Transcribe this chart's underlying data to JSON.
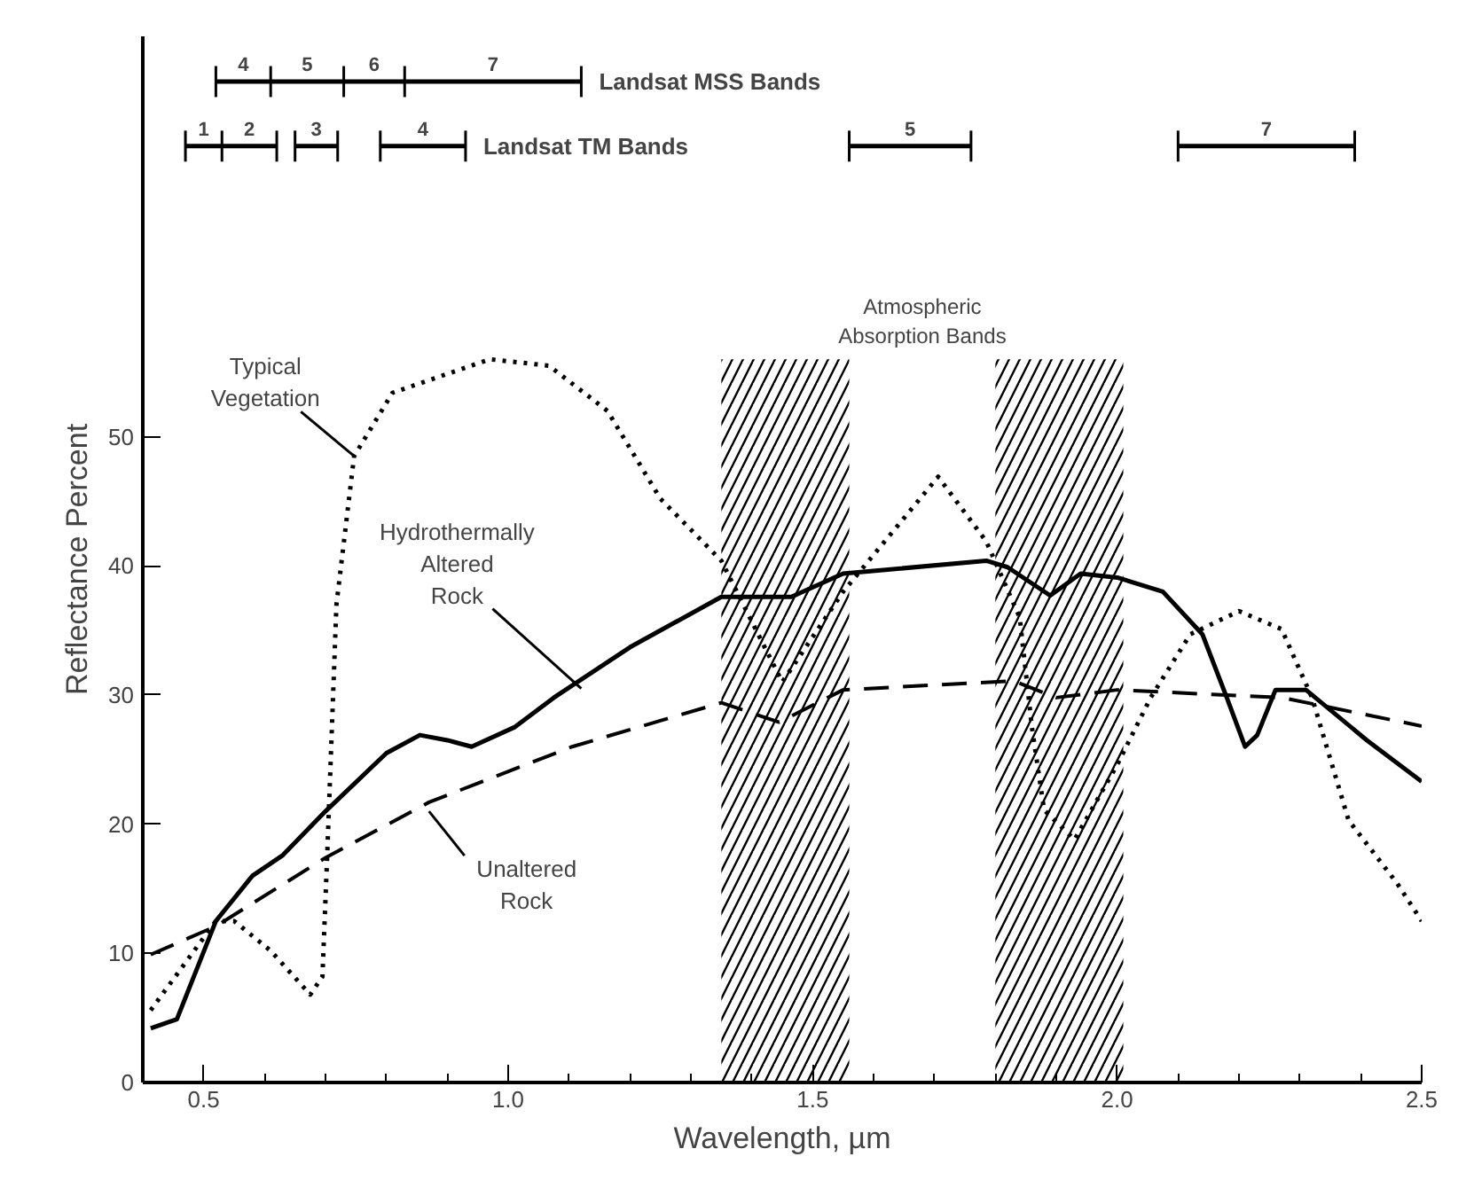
{
  "chart_data": {
    "type": "line",
    "xlabel": "Wavelength, µm",
    "ylabel": "Reflectance Percent",
    "xlim": [
      0.4,
      2.5
    ],
    "ylim": [
      0,
      81
    ],
    "xticks": [
      0.5,
      {
        "value": 0.6,
        "label": null
      },
      {
        "value": 0.7,
        "label": null
      },
      {
        "value": 0.8,
        "label": null
      },
      {
        "value": 0.9,
        "label": null
      },
      {
        "value": 1.0,
        "label": "1.0"
      },
      {
        "value": 1.1,
        "label": null
      },
      {
        "value": 1.2,
        "label": null
      },
      {
        "value": 1.3,
        "label": null
      },
      {
        "value": 1.4,
        "label": null
      },
      1.5,
      {
        "value": 1.6,
        "label": null
      },
      {
        "value": 1.7,
        "label": null
      },
      {
        "value": 1.8,
        "label": null
      },
      {
        "value": 1.9,
        "label": null
      },
      {
        "value": 2.0,
        "label": "2.0"
      },
      {
        "value": 2.1,
        "label": null
      },
      {
        "value": 2.2,
        "label": null
      },
      {
        "value": 2.3,
        "label": null
      },
      {
        "value": 2.4,
        "label": null
      },
      2.5
    ],
    "yticks": [
      0,
      10,
      20,
      30,
      40,
      50
    ],
    "grid": false,
    "bands": [
      {
        "axis": "x",
        "from": 1.35,
        "to": 1.56,
        "color": "#000000"
      },
      {
        "axis": "x",
        "from": 1.8,
        "to": 2.01,
        "color": "#000000"
      }
    ],
    "series": [
      {
        "color": "#000000",
        "line_style": "dotted",
        "x": [
          0.413,
          0.52,
          0.55,
          0.61,
          0.675,
          0.695,
          0.703,
          0.718,
          0.747,
          0.81,
          0.97,
          1.067,
          1.163,
          1.25,
          1.35,
          1.45,
          1.55,
          1.706,
          1.785,
          1.84,
          1.86,
          1.88,
          1.93,
          2.0,
          2.055,
          2.12,
          2.2,
          2.27,
          2.32,
          2.38,
          2.46,
          2.5
        ],
        "values": [
          5.6,
          12.5,
          12.5,
          10.2,
          6.8,
          8.2,
          17.8,
          37,
          48.5,
          53.4,
          56,
          55.5,
          52,
          45.2,
          40.4,
          31,
          38,
          46.9,
          41.9,
          36,
          27.5,
          21.1,
          18.8,
          24.6,
          29.8,
          34.7,
          36.5,
          35.1,
          29.8,
          20.3,
          15.4,
          12.5
        ]
      },
      {
        "color": "#000000",
        "line_style": "solid",
        "x": [
          0.413,
          0.456,
          0.52,
          0.58,
          0.63,
          0.7,
          0.8,
          0.855,
          0.9,
          0.94,
          1.01,
          1.075,
          1.2,
          1.35,
          1.465,
          1.55,
          1.785,
          1.82,
          1.89,
          1.94,
          2.0,
          2.075,
          2.14,
          2.18,
          2.21,
          2.23,
          2.26,
          2.31,
          2.41,
          2.5
        ],
        "values": [
          4.2,
          4.9,
          12.5,
          16,
          17.6,
          21,
          25.5,
          26.9,
          26.5,
          26,
          27.5,
          29.8,
          33.7,
          37.6,
          37.6,
          39.4,
          40.4,
          39.9,
          37.7,
          39.4,
          39.1,
          38,
          34.7,
          29.8,
          26,
          26.9,
          30.4,
          30.4,
          26.5,
          23.3
        ]
      },
      {
        "color": "#000000",
        "line_style": "dashed",
        "x": [
          0.413,
          0.52,
          0.7,
          0.87,
          1.105,
          1.35,
          1.445,
          1.55,
          1.83,
          1.9,
          2.0,
          2.27,
          2.5
        ],
        "values": [
          9.9,
          12.1,
          17.4,
          21.7,
          26,
          29.4,
          27.9,
          30.4,
          31.1,
          29.8,
          30.4,
          29.8,
          27.6
        ]
      },
      {
        "name": "Landsat MSS Bands",
        "color": "#000000",
        "line_style": "solid",
        "x": [
          0.52,
          0.61,
          0.73,
          0.83,
          1.12
        ],
        "values": [
          77.5,
          77.5,
          77.5,
          77.5,
          77.5
        ],
        "errors": [
          1.2,
          1.2,
          1.2,
          1.2,
          1.2
        ]
      },
      {
        "name": "Landsat TM Bands",
        "color": "#000000",
        "line_style": "solid",
        "x": [
          0.47,
          0.53,
          0.62,
          null,
          0.65,
          0.72,
          null,
          0.79,
          0.93,
          null,
          1.56,
          1.76,
          null,
          2.1,
          2.39
        ],
        "values": [
          72.5,
          72.5,
          72.5,
          null,
          72.5,
          72.5,
          null,
          72.5,
          72.5,
          null,
          72.5,
          72.5,
          null,
          72.5,
          72.5
        ],
        "errors": [
          1.2,
          1.2,
          1.2,
          null,
          1.2,
          1.2,
          null,
          1.2,
          1.2,
          null,
          1.2,
          1.2,
          null,
          1.2,
          1.2
        ]
      }
    ],
    "annotations": [
      "Atmospheric Absorption Bands",
      {
        "text": "Typical Vegetation",
        "x": 0.747,
        "y": 48.5
      },
      {
        "text": "Hydrothermally Altered Rock",
        "x": 1.12,
        "y": 30.5
      },
      {
        "text": "Unaltered Rock",
        "x": 0.87,
        "y": 21
      },
      "4",
      "5",
      "6",
      "7",
      "1",
      "2",
      "3",
      "4",
      "5",
      "7"
    ]
  }
}
